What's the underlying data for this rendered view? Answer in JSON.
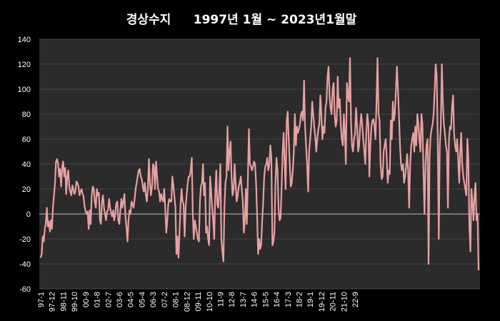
{
  "chart_data": {
    "type": "line",
    "title_left": "경상수지",
    "title_right": "1997년 1월 ~ 2023년1월말",
    "xlabel": "",
    "ylabel": "",
    "ylim": [
      -60,
      140
    ],
    "yticks": [
      -60,
      -40,
      -20,
      0,
      20,
      40,
      60,
      80,
      100,
      120,
      140
    ],
    "grid": true,
    "x_tick_labels": [
      "97-1",
      "97-12",
      "98-11",
      "99-10",
      "00-9",
      "01-8",
      "02-7",
      "03-6",
      "04-5",
      "05-4",
      "06-3",
      "07-2",
      "08-1",
      "08-12",
      "09-11",
      "10-10",
      "11-9",
      "12-8",
      "13-7",
      "14-6",
      "15-5",
      "16-4",
      "17-3",
      "18-2",
      "19-1",
      "19-12",
      "20-11",
      "21-10",
      "22-9"
    ],
    "colors": {
      "line": "#e8a0a0",
      "plot_bg": "#2b2b2b",
      "page_bg": "#000000",
      "grid": "#444444",
      "zero_line": "#bbbbbb"
    },
    "series": [
      {
        "values": [
          -35,
          -32,
          -18,
          -22,
          -12,
          -8,
          5,
          -10,
          -6,
          -14,
          -5,
          -12,
          5,
          15,
          25,
          42,
          44,
          40,
          30,
          36,
          22,
          38,
          42,
          30,
          37,
          16,
          30,
          35,
          22,
          18,
          15,
          23,
          20,
          16,
          18,
          26,
          25,
          22,
          15,
          18,
          20,
          16,
          14,
          6,
          2,
          0,
          2,
          -12,
          3,
          -8,
          15,
          22,
          20,
          10,
          5,
          20,
          15,
          17,
          -5,
          -8,
          10,
          15,
          5,
          0,
          -5,
          2,
          3,
          12,
          5,
          1,
          -2,
          3,
          -5,
          0,
          8,
          10,
          -5,
          -8,
          3,
          12,
          5,
          10,
          16,
          -2,
          -10,
          -22,
          -5,
          3,
          0,
          10,
          8,
          5,
          12,
          20,
          25,
          30,
          35,
          36,
          30,
          28,
          22,
          18,
          25,
          15,
          10,
          20,
          44,
          25,
          15,
          22,
          40,
          38,
          20,
          42,
          30,
          20,
          18,
          10,
          16,
          12,
          10,
          20,
          5,
          -15,
          -5,
          8,
          12,
          10,
          10,
          30,
          22,
          14,
          5,
          -32,
          -18,
          -35,
          -15,
          8,
          20,
          10,
          8,
          -18,
          5,
          15,
          25,
          30,
          30,
          35,
          45,
          0,
          -20,
          -5,
          -10,
          -15,
          -20,
          -22,
          10,
          22,
          25,
          40,
          15,
          25,
          -15,
          -10,
          -20,
          -25,
          30,
          18,
          5,
          -5,
          -20,
          15,
          35,
          8,
          5,
          20,
          40,
          -20,
          -30,
          -38,
          5,
          25,
          30,
          70,
          35,
          50,
          58,
          30,
          15,
          20,
          40,
          25,
          10,
          15,
          22,
          25,
          30,
          20,
          10,
          -15,
          -5,
          20,
          -8,
          30,
          68,
          40,
          38,
          35,
          38,
          42,
          40,
          25,
          0,
          -32,
          -20,
          -28,
          -25,
          -5,
          10,
          30,
          38,
          40,
          45,
          35,
          40,
          55,
          45,
          -25,
          -22,
          -15,
          25,
          45,
          35,
          5,
          -5,
          -3,
          20,
          50,
          65,
          40,
          20,
          75,
          82,
          60,
          40,
          22,
          25,
          35,
          50,
          80,
          55,
          70,
          65,
          68,
          72,
          80,
          82,
          75,
          107,
          70,
          55,
          40,
          18,
          50,
          60,
          70,
          90,
          80,
          70,
          62,
          50,
          60,
          68,
          72,
          95,
          80,
          60,
          70,
          65,
          85,
          90,
          110,
          118,
          95,
          85,
          80,
          100,
          105,
          80,
          70,
          75,
          110,
          85,
          92,
          72,
          60,
          55,
          80,
          65,
          40,
          105,
          95,
          90,
          125,
          75,
          55,
          50,
          60,
          65,
          85,
          70,
          50,
          55,
          70,
          80,
          72,
          60,
          50,
          40,
          65,
          80,
          72,
          30,
          55,
          70,
          75,
          76,
          70,
          60,
          90,
          125,
          80,
          75,
          40,
          28,
          30,
          50,
          55,
          60,
          45,
          25,
          35,
          32,
          75,
          60,
          90,
          75,
          80,
          100,
          118,
          100,
          80,
          55,
          40,
          35,
          40,
          25,
          30,
          38,
          48,
          35,
          5,
          40,
          55,
          60,
          65,
          50,
          70,
          55,
          80,
          72,
          60,
          50,
          80,
          72,
          35,
          0,
          40,
          55,
          60,
          -40,
          45,
          62,
          68,
          72,
          80,
          100,
          120,
          110,
          60,
          -20,
          55,
          70,
          120,
          90,
          72,
          65,
          55,
          50,
          5,
          60,
          70,
          68,
          85,
          95,
          65,
          55,
          50,
          60,
          45,
          25,
          50,
          65,
          40,
          30,
          25,
          20,
          15,
          60,
          45,
          -10,
          -30,
          20,
          10,
          -5,
          15,
          25,
          -5,
          0,
          -45
        ]
      }
    ]
  }
}
